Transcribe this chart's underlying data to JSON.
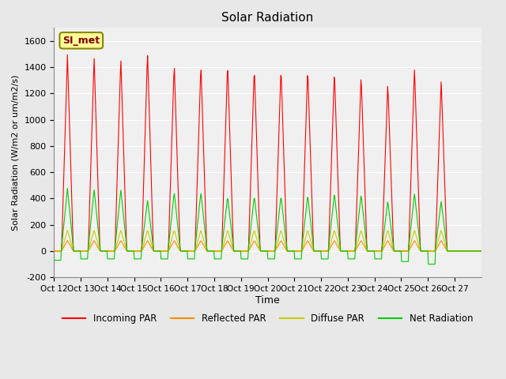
{
  "title": "Solar Radiation",
  "ylabel": "Solar Radiation (W/m2 or um/m2/s)",
  "xlabel": "Time",
  "ylim": [
    -200,
    1700
  ],
  "yticks": [
    -200,
    0,
    200,
    400,
    600,
    800,
    1000,
    1200,
    1400,
    1600
  ],
  "x_tick_labels": [
    "Oct 12",
    "Oct 13",
    "Oct 14",
    "Oct 15",
    "Oct 16",
    "Oct 17",
    "Oct 18",
    "Oct 19",
    "Oct 20",
    "Oct 21",
    "Oct 22",
    "Oct 23",
    "Oct 24",
    "Oct 25",
    "Oct 26",
    "Oct 27"
  ],
  "legend_label": "SI_met",
  "series_labels": [
    "Incoming PAR",
    "Reflected PAR",
    "Diffuse PAR",
    "Net Radiation"
  ],
  "series_colors": [
    "#ff0000",
    "#ff8c00",
    "#cccc00",
    "#00cc00"
  ],
  "bg_color": "#e8e8e8",
  "plot_bg_color": "#f0f0f0",
  "n_days": 16,
  "peaks_incoming": [
    1500,
    1480,
    1470,
    1520,
    1430,
    1425,
    1430,
    1400,
    1400,
    1390,
    1370,
    1340,
    1280,
    1400,
    1300,
    0
  ],
  "peaks_reflected": [
    80,
    80,
    80,
    80,
    80,
    80,
    80,
    80,
    80,
    80,
    80,
    80,
    80,
    80,
    80,
    0
  ],
  "peaks_diffuse": [
    160,
    160,
    160,
    160,
    160,
    160,
    160,
    160,
    160,
    160,
    160,
    160,
    160,
    160,
    160,
    0
  ],
  "peaks_net": [
    480,
    470,
    470,
    390,
    450,
    450,
    415,
    420,
    420,
    425,
    440,
    430,
    380,
    440,
    380,
    0
  ],
  "valley_net": [
    -70,
    -60,
    -60,
    -60,
    -60,
    -60,
    -60,
    -60,
    -60,
    -60,
    -60,
    -60,
    -60,
    -80,
    -100,
    -60
  ]
}
